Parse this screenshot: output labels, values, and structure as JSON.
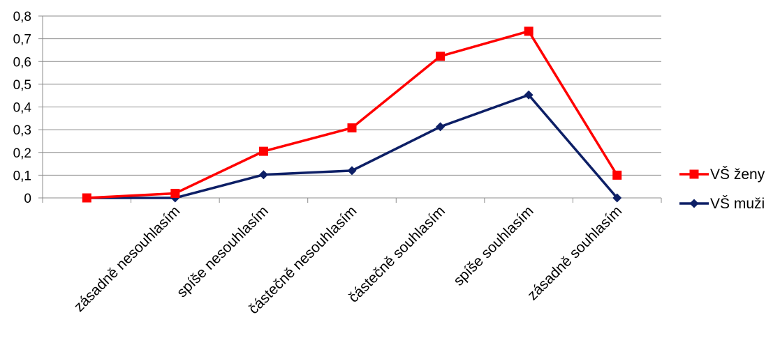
{
  "chart_data": {
    "type": "line",
    "categories": [
      "",
      "zásadně nesouhlasím",
      "spíše nesouhlasím",
      "částečně nesouhlasím",
      "částečně souhlasím",
      "spíše souhlasím",
      "zásadně souhlasím"
    ],
    "series": [
      {
        "name": "VŠ ženy",
        "color": "#ff0000",
        "marker": "square",
        "values": [
          0,
          0.02,
          0.205,
          0.308,
          0.623,
          0.733,
          0.1
        ]
      },
      {
        "name": "VŠ muži",
        "color": "#0d1f66",
        "marker": "diamond",
        "values": [
          0,
          0,
          0.102,
          0.12,
          0.313,
          0.453,
          0
        ]
      }
    ],
    "ylim": [
      0,
      0.8
    ],
    "yticks": [
      "0",
      "0,1",
      "0,2",
      "0,3",
      "0,4",
      "0,5",
      "0,6",
      "0,7",
      "0,8"
    ],
    "grid": true,
    "legend_position": "right",
    "title": "",
    "xlabel": "",
    "ylabel": ""
  }
}
